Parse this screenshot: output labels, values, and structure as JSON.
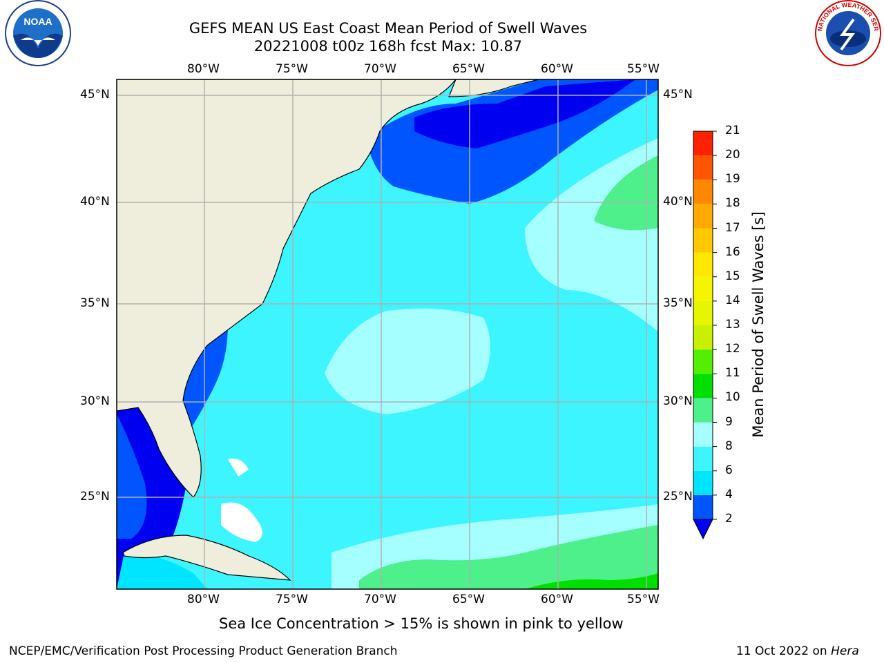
{
  "header": {
    "title_line1": "GEFS MEAN US East Coast Mean Period of Swell Waves",
    "title_line2": "20221008 t00z 168h fcst   Max: 10.87"
  },
  "logos": {
    "left": {
      "icon": "noaa-logo",
      "text": "NOAA"
    },
    "right": {
      "icon": "nws-logo",
      "ring_text": "NATIONAL WEATHER SERVICE"
    }
  },
  "map": {
    "lon_labels": [
      "80°W",
      "75°W",
      "70°W",
      "65°W",
      "60°W",
      "55°W"
    ],
    "lat_labels": [
      "45°N",
      "40°N",
      "35°N",
      "30°N",
      "25°N"
    ],
    "land_color": "#efeedd",
    "ocean_palette": {
      "2-4": "#0055ff",
      "4-6": "#00e5ff",
      "6-8": "#3df5ff",
      "8-9": "#a6ffff",
      "9-10": "#4df08a",
      "10-11": "#00e000",
      "below": "#0000f0"
    }
  },
  "colorbar": {
    "label": "Mean Period of Swell Waves [s]",
    "ticks": [
      "2",
      "4",
      "6",
      "8",
      "9",
      "10",
      "11",
      "12",
      "13",
      "14",
      "15",
      "16",
      "17",
      "18",
      "19",
      "20",
      "21"
    ],
    "colors": [
      "#0055ff",
      "#00e5ff",
      "#3df5ff",
      "#a6ffff",
      "#4df08a",
      "#00e000",
      "#55ee00",
      "#c8f000",
      "#e6f500",
      "#f5f500",
      "#ffe800",
      "#ffc800",
      "#ffaa00",
      "#ff8800",
      "#ff5500",
      "#ff2200"
    ],
    "under_color": "#0000f0"
  },
  "notes": {
    "sea_ice": "Sea Ice Concentration > 15% is shown in pink to yellow"
  },
  "footer": {
    "left": "NCEP/EMC/Verification Post Processing Product Generation Branch",
    "right_date": "11 Oct 2022 on ",
    "right_host": "Hera"
  }
}
